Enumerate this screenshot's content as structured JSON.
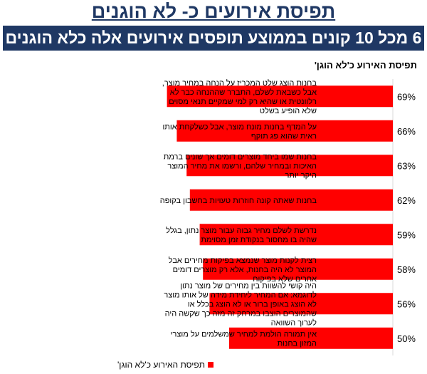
{
  "header": {
    "title": "תפיסת אירועים כ- לא הוגנים",
    "banner": "6 מכל 10 קונים בממוצע תופסים אירועים אלה כלא הוגנים"
  },
  "colors": {
    "bar": "#ff0000",
    "banner": "#1f3864"
  },
  "chart_data": {
    "type": "bar",
    "orientation": "horizontal",
    "title": "תפיסת האירוע כ'לא הוגן'",
    "categories": [
      "בחנות הוצג שלט המכריז על הנחה במחיר מוצר, אבל כשבאת לשלם, התברר שההנחה כבר לא רלוונטית או שהיא רק למי שמקיים תנאי מסוים שלא הופיע בשלט",
      "על המדף בחנות מונח מוצר, אבל כשלקחת אותו ראית שהוא פג תוקף",
      "בחנות שמו ביחד מוצרים דומים אך שונים ברמת האיכות ובמחיר שלהם, ורשמו את מחיר המוצר היקר יותר",
      "בחנות שאתה קונה חוזרות טעויות בחשבון בקופה",
      "נדרשת לשלם מחיר גבוה עבור מוצר נתון, בגלל שהיה בו מחסור בנקודת זמן מסוימת",
      "רצית לקנות מוצר שנמצא בפיקות מחירים אבל המוצר לא היה בחנות, אלא רק מוצרים דומים אחרים שלא בפיקוח",
      "היה קושי להשוות בין מחירים של מוצר נתון לדוגמא: אם המחיר ליחידת מידה של אותו מוצר לא הוצג באופן ברור או לא הוצג בכלל או שהמוצרים הוצבו במרחק זה מזה כך שקשה היה לערוך השוואה",
      "אין תמורה הולמת למחיר שמשלמים על מוצרי המזון בחנות"
    ],
    "values": [
      69,
      66,
      63,
      62,
      59,
      58,
      56,
      50
    ],
    "value_labels": [
      "69%",
      "66%",
      "63%",
      "62%",
      "59%",
      "58%",
      "56%",
      "50%"
    ],
    "series": [
      {
        "name": "תפיסת האירוע כ'לא הוגן'",
        "values": [
          69,
          66,
          63,
          62,
          59,
          58,
          56,
          50
        ]
      }
    ],
    "xlim": [
      0,
      100
    ],
    "legend": "bottom"
  }
}
